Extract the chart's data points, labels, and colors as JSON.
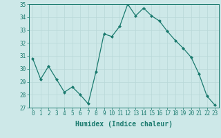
{
  "x": [
    0,
    1,
    2,
    3,
    4,
    5,
    6,
    7,
    8,
    9,
    10,
    11,
    12,
    13,
    14,
    15,
    16,
    17,
    18,
    19,
    20,
    21,
    22,
    23
  ],
  "y": [
    30.8,
    29.2,
    30.2,
    29.2,
    28.2,
    28.6,
    28.0,
    27.3,
    29.8,
    32.7,
    32.5,
    33.3,
    35.0,
    34.1,
    34.7,
    34.1,
    33.7,
    32.9,
    32.2,
    31.6,
    30.9,
    29.6,
    27.9,
    27.2
  ],
  "line_color": "#1a7a6e",
  "marker": "D",
  "marker_size": 2,
  "bg_color": "#cde8e8",
  "grid_color": "#b8d8d8",
  "xlabel": "Humidex (Indice chaleur)",
  "ylim": [
    27,
    35
  ],
  "xlim_min": -0.5,
  "xlim_max": 23.5,
  "yticks": [
    27,
    28,
    29,
    30,
    31,
    32,
    33,
    34,
    35
  ],
  "xticks": [
    0,
    1,
    2,
    3,
    4,
    5,
    6,
    7,
    8,
    9,
    10,
    11,
    12,
    13,
    14,
    15,
    16,
    17,
    18,
    19,
    20,
    21,
    22,
    23
  ],
  "tick_color": "#1a7a6e",
  "label_color": "#1a7a6e",
  "spine_color": "#1a7a6e",
  "tick_fontsize": 5.5,
  "xlabel_fontsize": 7
}
